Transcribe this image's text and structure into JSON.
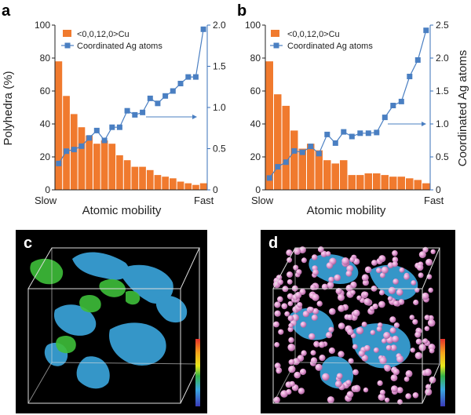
{
  "figure": {
    "panels_3d": [
      {
        "letter": "c",
        "colorbar": true
      },
      {
        "letter": "d",
        "colorbar": true
      }
    ]
  },
  "chart_data": [
    {
      "type": "bar",
      "panel_letter": "a",
      "xlabel": "Atomic mobility",
      "x_start_label": "Slow",
      "x_end_label": "Fast",
      "ylabel": "Polyhedra (%)",
      "ylim": [
        0,
        100
      ],
      "yticks": [
        "0",
        "20",
        "40",
        "60",
        "80",
        "100"
      ],
      "ylabel_right": "",
      "ylim_right": [
        0,
        2.0
      ],
      "yticks_right": [
        "0",
        "0.5",
        "1.0",
        "1.5",
        "2.0"
      ],
      "categories": 20,
      "series": [
        {
          "name": "<0,0,12,0>Cu",
          "kind": "bar",
          "axis": "left",
          "values": [
            78,
            57,
            46,
            38,
            33,
            28,
            30,
            28,
            21,
            18,
            14,
            14,
            12,
            9,
            8,
            7,
            5,
            4,
            3,
            4
          ]
        },
        {
          "name": "Coordinated Ag atoms",
          "kind": "line",
          "axis": "right",
          "values": [
            0.32,
            0.47,
            0.49,
            0.53,
            0.63,
            0.72,
            0.6,
            0.76,
            0.76,
            0.96,
            0.91,
            0.94,
            1.11,
            1.05,
            1.14,
            1.2,
            1.29,
            1.37,
            1.37,
            1.95
          ]
        }
      ],
      "arrow": "right",
      "colors": {
        "bar": "#f07a2e",
        "line": "#4a7fc2",
        "axis_right": "#3a70b8"
      }
    },
    {
      "type": "bar",
      "panel_letter": "b",
      "xlabel": "Atomic mobility",
      "x_start_label": "Slow",
      "x_end_label": "Fast",
      "ylabel": "",
      "ylim": [
        0,
        100
      ],
      "yticks": [
        "0",
        "20",
        "40",
        "60",
        "80",
        "100"
      ],
      "ylabel_right": "Coordinated Ag atoms",
      "ylim_right": [
        0,
        2.5
      ],
      "yticks_right": [
        "0",
        "0.5",
        "1.0",
        "1.5",
        "2.0",
        "2.5"
      ],
      "categories": 20,
      "series": [
        {
          "name": "<0,0,12,0>Cu",
          "kind": "bar",
          "axis": "left",
          "values": [
            78,
            58,
            51,
            36,
            25,
            28,
            24,
            18,
            16,
            18,
            9,
            9,
            10,
            10,
            9,
            8,
            8,
            7,
            6,
            4
          ]
        },
        {
          "name": "Coordinated Ag atoms",
          "kind": "line",
          "axis": "right",
          "values": [
            0.18,
            0.35,
            0.42,
            0.59,
            0.57,
            0.66,
            0.55,
            0.84,
            0.71,
            0.88,
            0.81,
            0.86,
            0.86,
            0.87,
            1.1,
            1.28,
            1.34,
            1.72,
            1.97,
            2.42
          ]
        }
      ],
      "arrow": "right",
      "colors": {
        "bar": "#f07a2e",
        "line": "#4a7fc2",
        "axis_right": "#3a70b8"
      }
    }
  ]
}
